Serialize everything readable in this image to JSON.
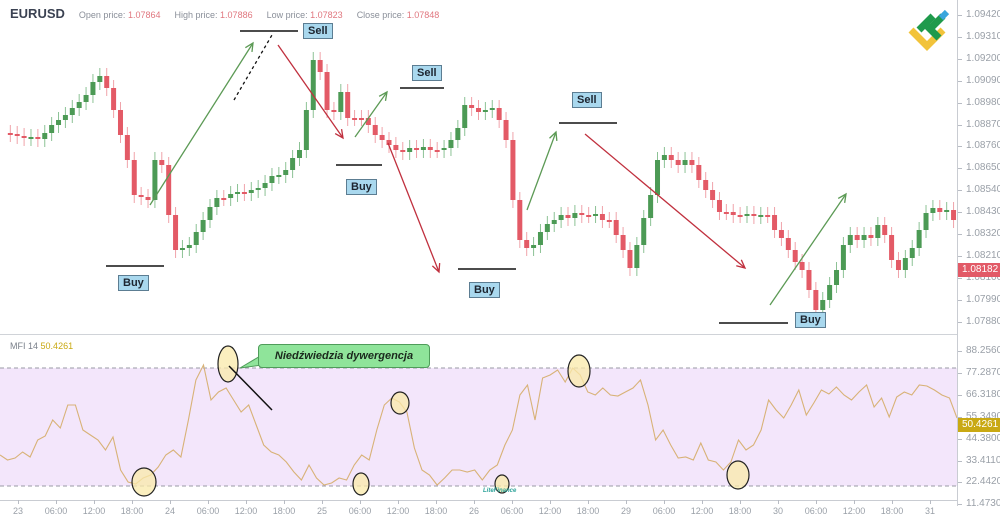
{
  "header": {
    "symbol": "EURUSD",
    "open_label": "Open price:",
    "open_value": "1.07864",
    "high_label": "High price:",
    "high_value": "1.07886",
    "low_label": "Low price:",
    "low_value": "1.07823",
    "close_label": "Close price:",
    "close_value": "1.07848"
  },
  "price_axis": {
    "ticks": [
      "1.09420",
      "1.09310",
      "1.09200",
      "1.09090",
      "1.08980",
      "1.08870",
      "1.08760",
      "1.08650",
      "1.08540",
      "1.08430",
      "1.08320",
      "1.08210",
      "1.08100",
      "1.07990",
      "1.07880"
    ],
    "current_price": "1.08182",
    "current_color": "#e25a67"
  },
  "indicator": {
    "name": "MFI",
    "period": "14",
    "value": "50.4261",
    "ticks": [
      "88.2560",
      "77.2870",
      "66.3180",
      "55.3490",
      "44.3800",
      "33.4110",
      "22.4420",
      "11.4730"
    ],
    "current_color": "#c9a913",
    "overbought": 80,
    "oversold": 20
  },
  "time_axis": {
    "labels": [
      "23",
      "06:00",
      "12:00",
      "18:00",
      "24",
      "06:00",
      "12:00",
      "18:00",
      "25",
      "06:00",
      "12:00",
      "18:00",
      "26",
      "06:00",
      "12:00",
      "18:00",
      "29",
      "06:00",
      "12:00",
      "18:00",
      "30",
      "06:00",
      "12:00",
      "18:00",
      "31"
    ]
  },
  "annotations": {
    "sell": "Sell",
    "buy": "Buy",
    "divergence": "Niedźwiedzia dywergencja"
  },
  "watermark": "LiteFinance",
  "chart_data": [
    {
      "type": "candlestick",
      "title": "EURUSD",
      "ylim": [
        1.0788,
        1.0948
      ],
      "annotations": [
        {
          "label": "Buy",
          "price": 1.0815
        },
        {
          "label": "Sell",
          "price": 1.0936
        },
        {
          "label": "Buy",
          "price": 1.0868
        },
        {
          "label": "Sell",
          "price": 1.0902
        },
        {
          "label": "Buy",
          "price": 1.0822
        },
        {
          "label": "Sell",
          "price": 1.0889
        },
        {
          "label": "Buy",
          "price": 1.0793
        }
      ],
      "last_price": 1.08182
    },
    {
      "type": "line",
      "title": "MFI 14",
      "ylim": [
        11.473,
        88.256
      ],
      "levels": [
        80,
        20
      ],
      "last_value": 50.4261,
      "annotation": "Niedźwiedzia dywergencja"
    }
  ]
}
